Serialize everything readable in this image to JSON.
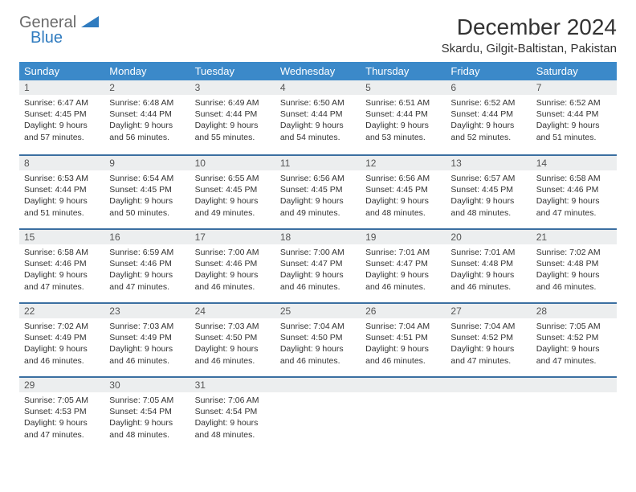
{
  "logo": {
    "word1": "General",
    "word2": "Blue"
  },
  "title": "December 2024",
  "location": "Skardu, Gilgit-Baltistan, Pakistan",
  "colors": {
    "header_bg": "#3b89c9",
    "header_text": "#ffffff",
    "daynum_bg": "#eceeef",
    "row_divider": "#3b6fa1",
    "logo_gray": "#6b6b6b",
    "logo_blue": "#2f7bbf",
    "body_text": "#333333",
    "page_bg": "#ffffff"
  },
  "font": {
    "family": "Arial",
    "title_size_pt": 21,
    "location_size_pt": 11,
    "header_size_pt": 10,
    "body_size_pt": 8
  },
  "weekdays": [
    "Sunday",
    "Monday",
    "Tuesday",
    "Wednesday",
    "Thursday",
    "Friday",
    "Saturday"
  ],
  "weeks": [
    [
      {
        "n": "1",
        "sr": "6:47 AM",
        "ss": "4:45 PM",
        "dl": "9 hours and 57 minutes."
      },
      {
        "n": "2",
        "sr": "6:48 AM",
        "ss": "4:44 PM",
        "dl": "9 hours and 56 minutes."
      },
      {
        "n": "3",
        "sr": "6:49 AM",
        "ss": "4:44 PM",
        "dl": "9 hours and 55 minutes."
      },
      {
        "n": "4",
        "sr": "6:50 AM",
        "ss": "4:44 PM",
        "dl": "9 hours and 54 minutes."
      },
      {
        "n": "5",
        "sr": "6:51 AM",
        "ss": "4:44 PM",
        "dl": "9 hours and 53 minutes."
      },
      {
        "n": "6",
        "sr": "6:52 AM",
        "ss": "4:44 PM",
        "dl": "9 hours and 52 minutes."
      },
      {
        "n": "7",
        "sr": "6:52 AM",
        "ss": "4:44 PM",
        "dl": "9 hours and 51 minutes."
      }
    ],
    [
      {
        "n": "8",
        "sr": "6:53 AM",
        "ss": "4:44 PM",
        "dl": "9 hours and 51 minutes."
      },
      {
        "n": "9",
        "sr": "6:54 AM",
        "ss": "4:45 PM",
        "dl": "9 hours and 50 minutes."
      },
      {
        "n": "10",
        "sr": "6:55 AM",
        "ss": "4:45 PM",
        "dl": "9 hours and 49 minutes."
      },
      {
        "n": "11",
        "sr": "6:56 AM",
        "ss": "4:45 PM",
        "dl": "9 hours and 49 minutes."
      },
      {
        "n": "12",
        "sr": "6:56 AM",
        "ss": "4:45 PM",
        "dl": "9 hours and 48 minutes."
      },
      {
        "n": "13",
        "sr": "6:57 AM",
        "ss": "4:45 PM",
        "dl": "9 hours and 48 minutes."
      },
      {
        "n": "14",
        "sr": "6:58 AM",
        "ss": "4:46 PM",
        "dl": "9 hours and 47 minutes."
      }
    ],
    [
      {
        "n": "15",
        "sr": "6:58 AM",
        "ss": "4:46 PM",
        "dl": "9 hours and 47 minutes."
      },
      {
        "n": "16",
        "sr": "6:59 AM",
        "ss": "4:46 PM",
        "dl": "9 hours and 47 minutes."
      },
      {
        "n": "17",
        "sr": "7:00 AM",
        "ss": "4:46 PM",
        "dl": "9 hours and 46 minutes."
      },
      {
        "n": "18",
        "sr": "7:00 AM",
        "ss": "4:47 PM",
        "dl": "9 hours and 46 minutes."
      },
      {
        "n": "19",
        "sr": "7:01 AM",
        "ss": "4:47 PM",
        "dl": "9 hours and 46 minutes."
      },
      {
        "n": "20",
        "sr": "7:01 AM",
        "ss": "4:48 PM",
        "dl": "9 hours and 46 minutes."
      },
      {
        "n": "21",
        "sr": "7:02 AM",
        "ss": "4:48 PM",
        "dl": "9 hours and 46 minutes."
      }
    ],
    [
      {
        "n": "22",
        "sr": "7:02 AM",
        "ss": "4:49 PM",
        "dl": "9 hours and 46 minutes."
      },
      {
        "n": "23",
        "sr": "7:03 AM",
        "ss": "4:49 PM",
        "dl": "9 hours and 46 minutes."
      },
      {
        "n": "24",
        "sr": "7:03 AM",
        "ss": "4:50 PM",
        "dl": "9 hours and 46 minutes."
      },
      {
        "n": "25",
        "sr": "7:04 AM",
        "ss": "4:50 PM",
        "dl": "9 hours and 46 minutes."
      },
      {
        "n": "26",
        "sr": "7:04 AM",
        "ss": "4:51 PM",
        "dl": "9 hours and 46 minutes."
      },
      {
        "n": "27",
        "sr": "7:04 AM",
        "ss": "4:52 PM",
        "dl": "9 hours and 47 minutes."
      },
      {
        "n": "28",
        "sr": "7:05 AM",
        "ss": "4:52 PM",
        "dl": "9 hours and 47 minutes."
      }
    ],
    [
      {
        "n": "29",
        "sr": "7:05 AM",
        "ss": "4:53 PM",
        "dl": "9 hours and 47 minutes."
      },
      {
        "n": "30",
        "sr": "7:05 AM",
        "ss": "4:54 PM",
        "dl": "9 hours and 48 minutes."
      },
      {
        "n": "31",
        "sr": "7:06 AM",
        "ss": "4:54 PM",
        "dl": "9 hours and 48 minutes."
      },
      null,
      null,
      null,
      null
    ]
  ],
  "labels": {
    "sunrise": "Sunrise:",
    "sunset": "Sunset:",
    "daylight": "Daylight:"
  }
}
